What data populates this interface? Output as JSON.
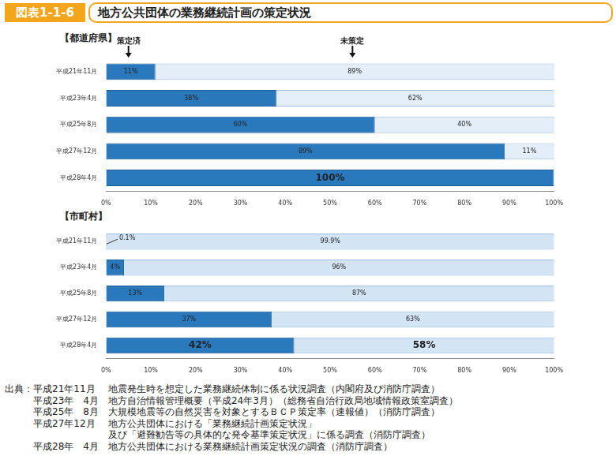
{
  "header": {
    "figure": "図表1-1-6",
    "title": "地方公共団体の業務継続計画の策定状況"
  },
  "chart_data": [
    {
      "type": "bar",
      "orientation": "horizontal",
      "stacked": true,
      "title": "【都道府県】",
      "legend": "top",
      "categories": [
        "平成21年11月",
        "平成23年4月",
        "平成25年8月",
        "平成27年12月",
        "平成28年4月"
      ],
      "series": [
        {
          "name": "策定済",
          "color": "#2a79bd",
          "values": [
            11,
            38,
            60,
            89,
            100
          ],
          "value_labels": [
            "11%",
            "38%",
            "60%",
            "89%",
            "100%"
          ]
        },
        {
          "name": "未策定",
          "color": "#e4eef8",
          "values": [
            89,
            62,
            40,
            11,
            0
          ],
          "value_labels": [
            "89%",
            "62%",
            "40%",
            "11%",
            null
          ]
        }
      ],
      "xlim": [
        0,
        100
      ],
      "xticks": [
        {
          "value": 0,
          "label": "0%"
        },
        {
          "value": 10,
          "label": "10%"
        },
        {
          "value": 20,
          "label": "20%"
        },
        {
          "value": 30,
          "label": "30%"
        },
        {
          "value": 40,
          "label": "40%"
        },
        {
          "value": 50,
          "label": "50%"
        },
        {
          "value": 60,
          "label": "60%"
        },
        {
          "value": 70,
          "label": "70%"
        },
        {
          "value": 80,
          "label": "80%"
        },
        {
          "value": 90,
          "label": "90%"
        },
        {
          "value": 100,
          "label": "100%"
        }
      ],
      "grid": false,
      "data_labels": true
    },
    {
      "type": "bar",
      "orientation": "horizontal",
      "stacked": true,
      "title": "【市町村】",
      "categories": [
        "平成21年11月",
        "平成23年4月",
        "平成25年8月",
        "平成27年12月",
        "平成28年4月"
      ],
      "series": [
        {
          "color": "#2a79bd",
          "values": [
            0.1,
            4,
            13,
            37,
            42
          ],
          "value_labels": [
            "0.1%",
            "4%",
            "13%",
            "37%",
            "42%"
          ]
        },
        {
          "color": "#d3e4f4",
          "values": [
            99.9,
            96,
            87,
            63,
            58
          ],
          "value_labels": [
            "99.9%",
            "96%",
            "87%",
            "63%",
            "58%"
          ]
        }
      ],
      "xlim": [
        0,
        100
      ],
      "xticks": [
        {
          "value": 0,
          "label": "0%"
        },
        {
          "value": 10,
          "label": "10%"
        },
        {
          "value": 20,
          "label": "20%"
        },
        {
          "value": 30,
          "label": "30%"
        },
        {
          "value": 40,
          "label": "40%"
        },
        {
          "value": 50,
          "label": "50%"
        },
        {
          "value": 60,
          "label": "60%"
        },
        {
          "value": 70,
          "label": "70%"
        },
        {
          "value": 80,
          "label": "80%"
        },
        {
          "value": 90,
          "label": "90%"
        },
        {
          "value": 100,
          "label": "100%"
        }
      ],
      "grid": false,
      "data_labels": true
    }
  ],
  "source": {
    "label": "出典：",
    "entries": [
      {
        "date": "平成21年11月",
        "lines": [
          "地震発生時を想定した業務継続体制に係る状況調査（内閣府及び消防庁調査）"
        ]
      },
      {
        "date": "平成23年　4月",
        "lines": [
          "地方自治情報管理概要（平成24年3月）（総務省自治行政局地域情報政策室調査）"
        ]
      },
      {
        "date": "平成25年　8月",
        "lines": [
          "大規模地震等の自然災害を対象とするＢＣＰ策定率（速報値）（消防庁調査）"
        ]
      },
      {
        "date": "平成27年12月",
        "lines": [
          "地方公共団体における「業務継続計画策定状況」",
          "及び「避難勧告等の具体的な発令基準策定状況」に係る調査（消防庁調査）"
        ]
      },
      {
        "date": "平成28年　4月",
        "lines": [
          "地方公共団体における業務継続計画策定状況の調査（消防庁調査）"
        ]
      }
    ]
  }
}
